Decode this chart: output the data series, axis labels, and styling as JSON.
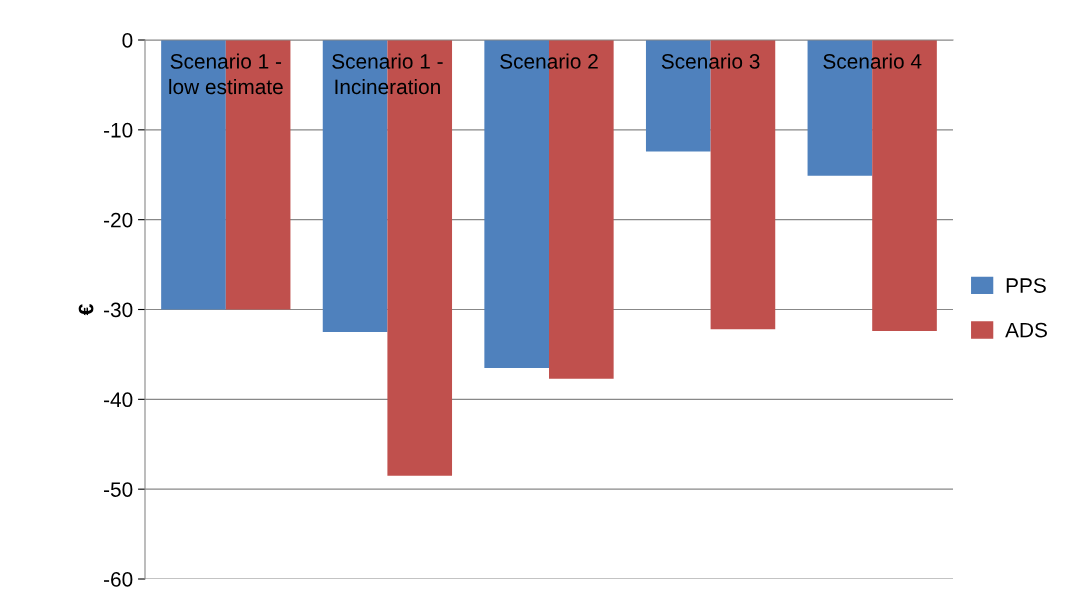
{
  "chart_data": {
    "type": "bar",
    "ylabel": "€",
    "categories": [
      "Scenario 1 -\nlow estimate",
      "Scenario 1 -\nIncineration",
      "Scenario 2",
      "Scenario 3",
      "Scenario 4"
    ],
    "series": [
      {
        "name": "PPS",
        "color": "#4f81bd",
        "values": [
          -30.0,
          -32.5,
          -36.5,
          -12.4,
          -15.1
        ]
      },
      {
        "name": "ADS",
        "color": "#c0504d",
        "values": [
          -30.0,
          -48.5,
          -37.7,
          -32.2,
          -32.4
        ]
      }
    ],
    "ylim": [
      -60,
      0
    ],
    "yticks": [
      {
        "value": -60,
        "label": "-60"
      },
      {
        "value": -50,
        "label": "-50"
      },
      {
        "value": -40,
        "label": "-40"
      },
      {
        "value": -30,
        "label": "-30"
      },
      {
        "value": -20,
        "label": "-20"
      },
      {
        "value": -10,
        "label": "-10"
      },
      0
    ],
    "grid": "y",
    "legend": "right"
  }
}
